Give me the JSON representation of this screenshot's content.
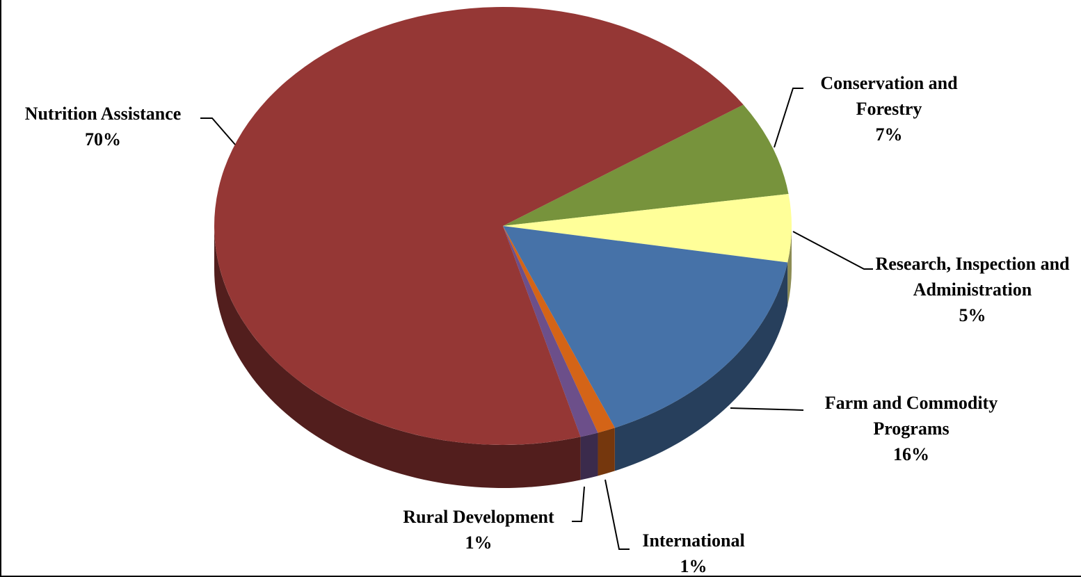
{
  "chart_data": {
    "type": "pie",
    "categories": [
      "Conservation and Forestry",
      "Research, Inspection and Administration",
      "Farm and Commodity Programs",
      "International",
      "Rural Development",
      "Nutrition Assistance"
    ],
    "values": [
      7,
      5,
      16,
      1,
      1,
      70
    ],
    "value_labels": [
      "7%",
      "5%",
      "16%",
      "1%",
      "1%",
      "70%"
    ],
    "colors": [
      "#77933c",
      "#ffff99",
      "#4672a8",
      "#d46417",
      "#6c4f8a",
      "#953735"
    ]
  }
}
